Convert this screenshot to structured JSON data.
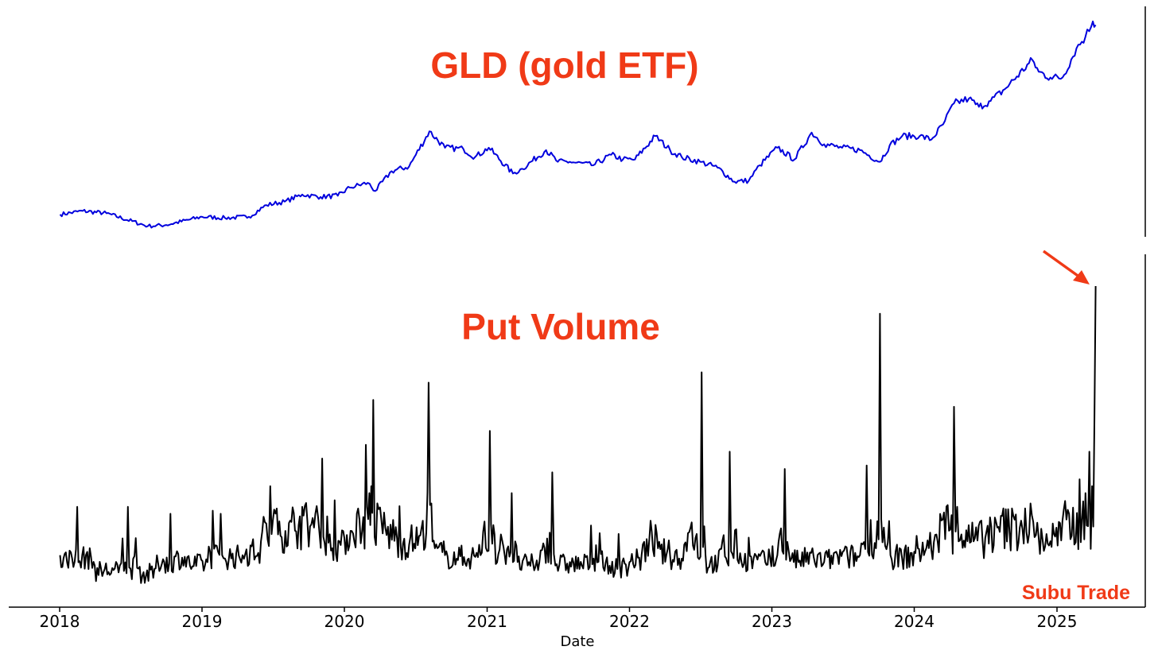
{
  "chart_data": [
    {
      "type": "line",
      "title": "GLD (gold ETF)",
      "title_color": "#F03A17",
      "line_color": "#0000DD",
      "xlim": [
        "2018-01-01",
        "2025-04-15"
      ],
      "series": [
        {
          "x": [
            "2018-01-02",
            "2018-03-01",
            "2018-05-01",
            "2018-08-15",
            "2018-10-01",
            "2019-01-01",
            "2019-03-01",
            "2019-05-01",
            "2019-06-15",
            "2019-08-01",
            "2019-09-15",
            "2019-11-01",
            "2019-12-15",
            "2020-01-15",
            "2020-03-01",
            "2020-03-20",
            "2020-05-01",
            "2020-06-15",
            "2020-08-06",
            "2020-09-15",
            "2020-11-01",
            "2020-12-01",
            "2021-01-05",
            "2021-03-08",
            "2021-04-01",
            "2021-06-01",
            "2021-07-01",
            "2021-08-01",
            "2021-09-30",
            "2021-11-15",
            "2021-12-15",
            "2022-01-15",
            "2022-03-08",
            "2022-04-15",
            "2022-05-15",
            "2022-07-01",
            "2022-08-15",
            "2022-09-27",
            "2022-11-03",
            "2022-12-01",
            "2023-01-15",
            "2023-02-28",
            "2023-04-13",
            "2023-05-15",
            "2023-06-30",
            "2023-08-15",
            "2023-10-05",
            "2023-10-30",
            "2023-12-01",
            "2024-01-15",
            "2024-02-14",
            "2024-03-15",
            "2024-04-12",
            "2024-05-20",
            "2024-06-15",
            "2024-07-15",
            "2024-08-20",
            "2024-10-30",
            "2024-11-15",
            "2024-12-15",
            "2025-01-15",
            "2025-02-20",
            "2025-03-15",
            "2025-04-03",
            "2025-04-10"
          ],
          "y": [
            123,
            126,
            124,
            113,
            114,
            121,
            120,
            121,
            131,
            134,
            140,
            138,
            139,
            146,
            150,
            143,
            160,
            164,
            194,
            180,
            179,
            172,
            180,
            158,
            162,
            178,
            168,
            168,
            165,
            174,
            170,
            170,
            190,
            178,
            172,
            168,
            163,
            151,
            152,
            165,
            180,
            170,
            193,
            183,
            180,
            178,
            168,
            182,
            190,
            190,
            187,
            200,
            218,
            222,
            215,
            220,
            230,
            255,
            245,
            240,
            240,
            265,
            275,
            288,
            285
          ]
        }
      ]
    },
    {
      "type": "line",
      "title": "Put Volume",
      "title_color": "#F03A17",
      "line_color": "#000000",
      "xlabel": "Date",
      "x_ticks": [
        "2018",
        "2019",
        "2020",
        "2021",
        "2022",
        "2023",
        "2024",
        "2025"
      ],
      "xlim": [
        "2018-01-01",
        "2025-04-15"
      ],
      "series": [
        {
          "x": [
            "2018-01-02",
            "2018-01-20",
            "2018-02-15",
            "2018-04-01",
            "2018-06-01",
            "2018-06-25",
            "2018-08-01",
            "2018-09-01",
            "2018-10-12",
            "2018-12-01",
            "2019-01-15",
            "2019-02-18",
            "2019-03-01",
            "2019-04-15",
            "2019-06-01",
            "2019-06-25",
            "2019-07-15",
            "2019-08-15",
            "2019-09-15",
            "2019-10-15",
            "2019-11-05",
            "2019-12-01",
            "2020-01-01",
            "2020-01-20",
            "2020-02-25",
            "2020-03-05",
            "2020-03-10",
            "2020-03-15",
            "2020-04-05",
            "2020-04-15",
            "2020-05-15",
            "2020-06-15",
            "2020-07-20",
            "2020-08-04",
            "2020-08-11",
            "2020-08-20",
            "2020-09-15",
            "2020-10-15",
            "2020-11-15",
            "2020-12-15",
            "2021-01-08",
            "2021-01-20",
            "2021-02-15",
            "2021-03-05",
            "2021-03-20",
            "2021-04-15",
            "2021-05-15",
            "2021-06-17",
            "2021-06-25",
            "2021-08-01",
            "2021-09-01",
            "2021-10-01",
            "2021-11-01",
            "2021-12-01",
            "2022-01-01",
            "2022-02-01",
            "2022-02-24",
            "2022-03-15",
            "2022-04-15",
            "2022-05-15",
            "2022-07-05",
            "2022-07-15",
            "2022-08-15",
            "2022-09-15",
            "2022-10-15",
            "2022-11-15",
            "2022-12-15",
            "2023-01-15",
            "2023-02-03",
            "2023-02-20",
            "2023-03-10",
            "2023-04-15",
            "2023-05-15",
            "2023-06-15",
            "2023-07-15",
            "2023-08-15",
            "2023-09-01",
            "2023-09-25",
            "2023-10-05",
            "2023-10-15",
            "2023-11-01",
            "2023-12-01",
            "2024-01-01",
            "2024-02-01",
            "2024-03-01",
            "2024-04-12",
            "2024-04-20",
            "2024-05-01",
            "2024-06-01",
            "2024-07-01",
            "2024-08-01",
            "2024-09-01",
            "2024-10-01",
            "2024-10-25",
            "2024-11-15",
            "2024-12-15",
            "2025-01-15",
            "2025-02-01",
            "2025-02-28",
            "2025-03-15",
            "2025-03-25",
            "2025-04-01",
            "2025-04-07",
            "2025-04-10"
          ],
          "y": [
            10,
            8,
            24,
            7,
            5,
            24,
            4,
            6,
            22,
            7,
            8,
            22,
            9,
            10,
            14,
            30,
            16,
            20,
            24,
            18,
            38,
            12,
            15,
            17,
            42,
            28,
            30,
            55,
            20,
            18,
            15,
            13,
            20,
            60,
            25,
            12,
            10,
            9,
            9,
            10,
            46,
            16,
            10,
            28,
            8,
            7,
            8,
            34,
            7,
            8,
            7,
            9,
            8,
            6,
            8,
            10,
            20,
            12,
            10,
            9,
            63,
            10,
            7,
            40,
            8,
            9,
            8,
            10,
            35,
            9,
            8,
            12,
            8,
            11,
            9,
            10,
            36,
            12,
            80,
            18,
            10,
            9,
            11,
            12,
            14,
            53,
            24,
            16,
            14,
            15,
            18,
            17,
            20,
            25,
            15,
            14,
            20,
            22,
            32,
            28,
            40,
            30,
            50,
            88
          ]
        }
      ]
    }
  ],
  "annotation": {
    "text": "Subu Trade",
    "color": "#F03A17"
  }
}
